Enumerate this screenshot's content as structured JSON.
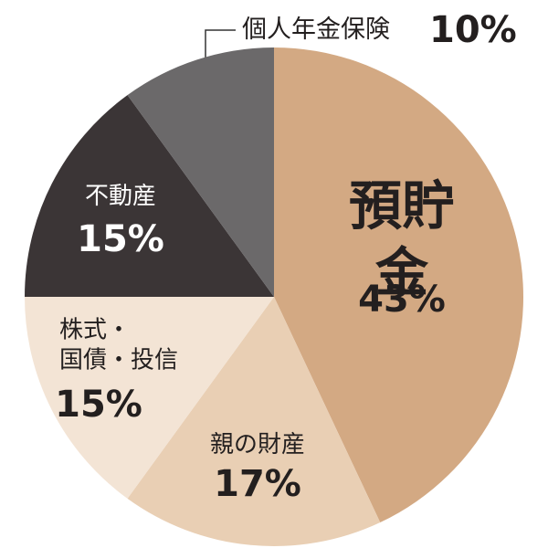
{
  "chart_data": {
    "type": "pie",
    "categories": [
      "預貯金",
      "親の財産",
      "株式・\n国債・投信",
      "不動産",
      "個人年金保険"
    ],
    "values": [
      43,
      17,
      15,
      15,
      10
    ],
    "value_labels": [
      "43%",
      "17%",
      "15%",
      "15%",
      "10%"
    ],
    "colors": [
      "#d3a983",
      "#e9cfb4",
      "#f3e4d5",
      "#3b3536",
      "#6b696a"
    ]
  }
}
